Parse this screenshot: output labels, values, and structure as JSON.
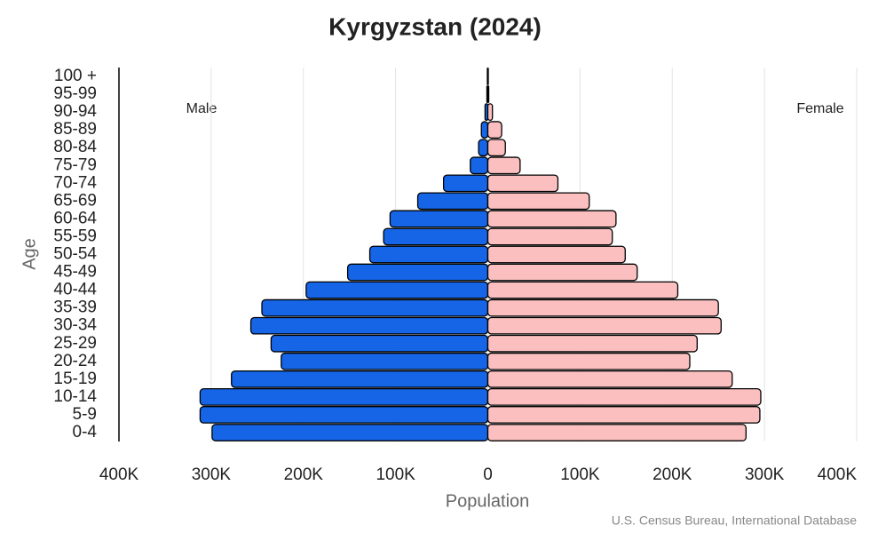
{
  "chart_data": {
    "type": "pyramid",
    "title": "Kyrgyzstan (2024)",
    "x_label": "Population",
    "y_label": "Age",
    "source": "U.S. Census Bureau, International Database",
    "categories": [
      "0-4",
      "5-9",
      "10-14",
      "15-19",
      "20-24",
      "25-29",
      "30-34",
      "35-39",
      "40-44",
      "45-49",
      "50-54",
      "55-59",
      "60-64",
      "65-69",
      "70-74",
      "75-79",
      "80-84",
      "85-89",
      "90-94",
      "95-99",
      "100 +"
    ],
    "series": [
      {
        "name": "Male",
        "color": "#1565e6",
        "values": [
          -299000,
          -312000,
          -312000,
          -278000,
          -224000,
          -235000,
          -257000,
          -245000,
          -197000,
          -152000,
          -128000,
          -113000,
          -106000,
          -76000,
          -48000,
          -19000,
          -10000,
          -7000,
          -3000,
          -1000,
          -500
        ]
      },
      {
        "name": "Female",
        "color": "#fbbfbf",
        "values": [
          280000,
          295000,
          296000,
          265000,
          219000,
          227000,
          253000,
          250000,
          206000,
          162000,
          149000,
          135000,
          139000,
          110000,
          76000,
          35000,
          19000,
          15000,
          5000,
          1000,
          500
        ]
      }
    ],
    "xlim": [
      -400000,
      400000
    ],
    "xticks": [
      {
        "value": -400000,
        "label": "400K"
      },
      {
        "value": -300000,
        "label": "300K"
      },
      {
        "value": -200000,
        "label": "200K"
      },
      {
        "value": -100000,
        "label": "100K"
      },
      0,
      {
        "value": 100000,
        "label": "100K"
      },
      {
        "value": 200000,
        "label": "200K"
      },
      {
        "value": 300000,
        "label": "300K"
      },
      {
        "value": 400000,
        "label": "400K"
      }
    ],
    "grid": true
  }
}
